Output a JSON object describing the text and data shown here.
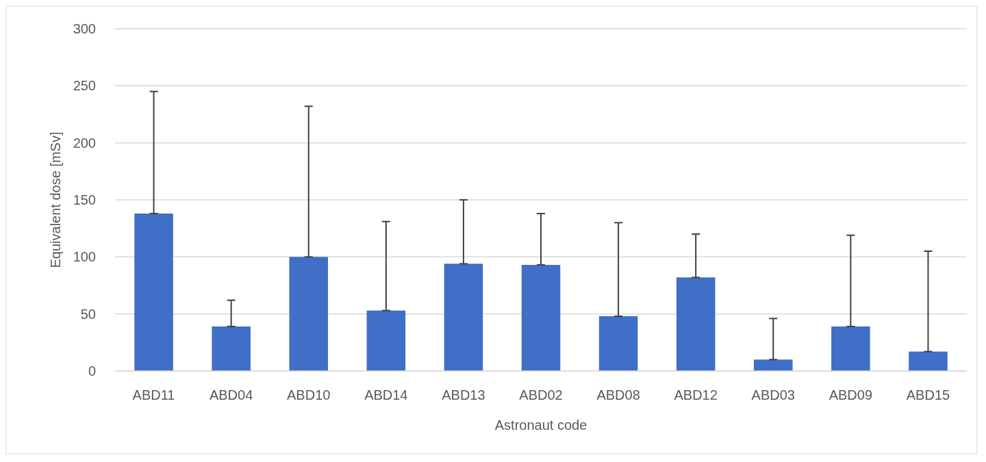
{
  "chart_data": {
    "type": "bar",
    "xlabel": "Astronaut code",
    "ylabel": "Equivalent dose [mSv]",
    "categories": [
      "ABD11",
      "ABD04",
      "ABD10",
      "ABD14",
      "ABD13",
      "ABD02",
      "ABD08",
      "ABD12",
      "ABD03",
      "ABD09",
      "ABD15"
    ],
    "values": [
      138,
      39,
      100,
      53,
      94,
      93,
      48,
      82,
      10,
      39,
      17
    ],
    "errors": [
      [
        138,
        245
      ],
      [
        39,
        62
      ],
      [
        100,
        232
      ],
      [
        53,
        131
      ],
      [
        94,
        150
      ],
      [
        93,
        138
      ],
      [
        48,
        130
      ],
      [
        82,
        120
      ],
      [
        10,
        46
      ],
      [
        39,
        119
      ],
      [
        17,
        105
      ]
    ],
    "color": "#3f6fc6",
    "ylim": [
      0,
      300
    ],
    "yticks": [
      0,
      50,
      100,
      150,
      200,
      250,
      300
    ],
    "grid": "y"
  }
}
